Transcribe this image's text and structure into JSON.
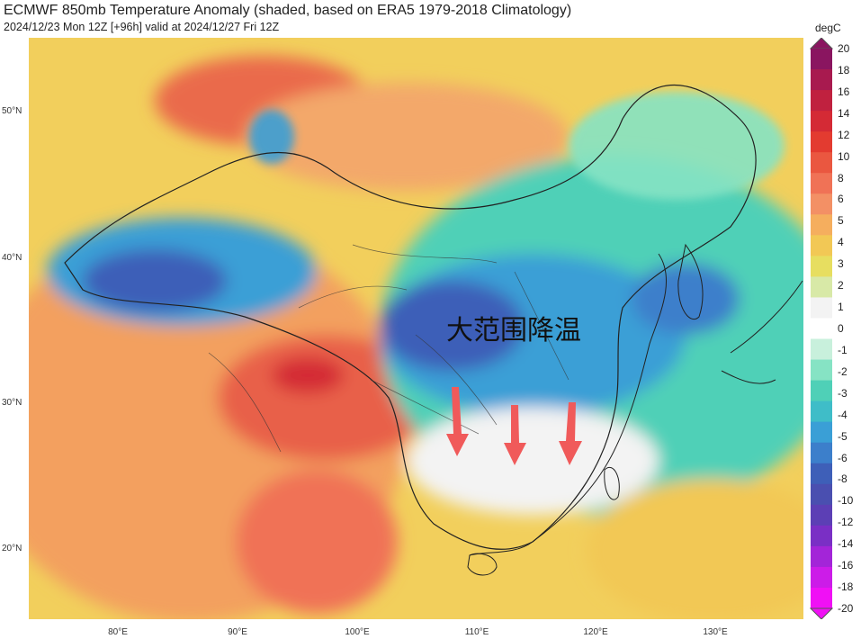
{
  "title": "ECMWF 850mb Temperature Anomaly (shaded, based on ERA5 1979-2018 Climatology)",
  "subtitle": "2024/12/23 Mon 12Z [+96h] valid at 2024/12/27 Fri 12Z",
  "annotation": "大范围降温",
  "colorbar": {
    "unit": "degC",
    "ticks": [
      "20",
      "18",
      "16",
      "14",
      "12",
      "10",
      "8",
      "6",
      "5",
      "4",
      "3",
      "2",
      "1",
      "0",
      "-1",
      "-2",
      "-3",
      "-4",
      "-5",
      "-6",
      "-8",
      "-10",
      "-12",
      "-14",
      "-16",
      "-18",
      "-20"
    ],
    "colors": [
      "#8a1560",
      "#a81a4f",
      "#c0213f",
      "#d42a35",
      "#e33b30",
      "#ea5740",
      "#f07256",
      "#f39065",
      "#f5ae5e",
      "#f2c855",
      "#e7de60",
      "#d8e9a7",
      "#f3f3f3",
      "#ffffff",
      "#c8f0dc",
      "#86e3c4",
      "#4fd0b7",
      "#3fbdc8",
      "#3a9fd6",
      "#3c7fcb",
      "#3e5fb8",
      "#4a4fb0",
      "#5c3fb5",
      "#7a2fc5",
      "#a325d8",
      "#cc1ce8",
      "#f010f5"
    ]
  },
  "axes": {
    "lat": [
      "50°N",
      "40°N",
      "30°N",
      "20°N"
    ],
    "lon": [
      "80°E",
      "90°E",
      "100°E",
      "110°E",
      "120°E",
      "130°E"
    ]
  }
}
